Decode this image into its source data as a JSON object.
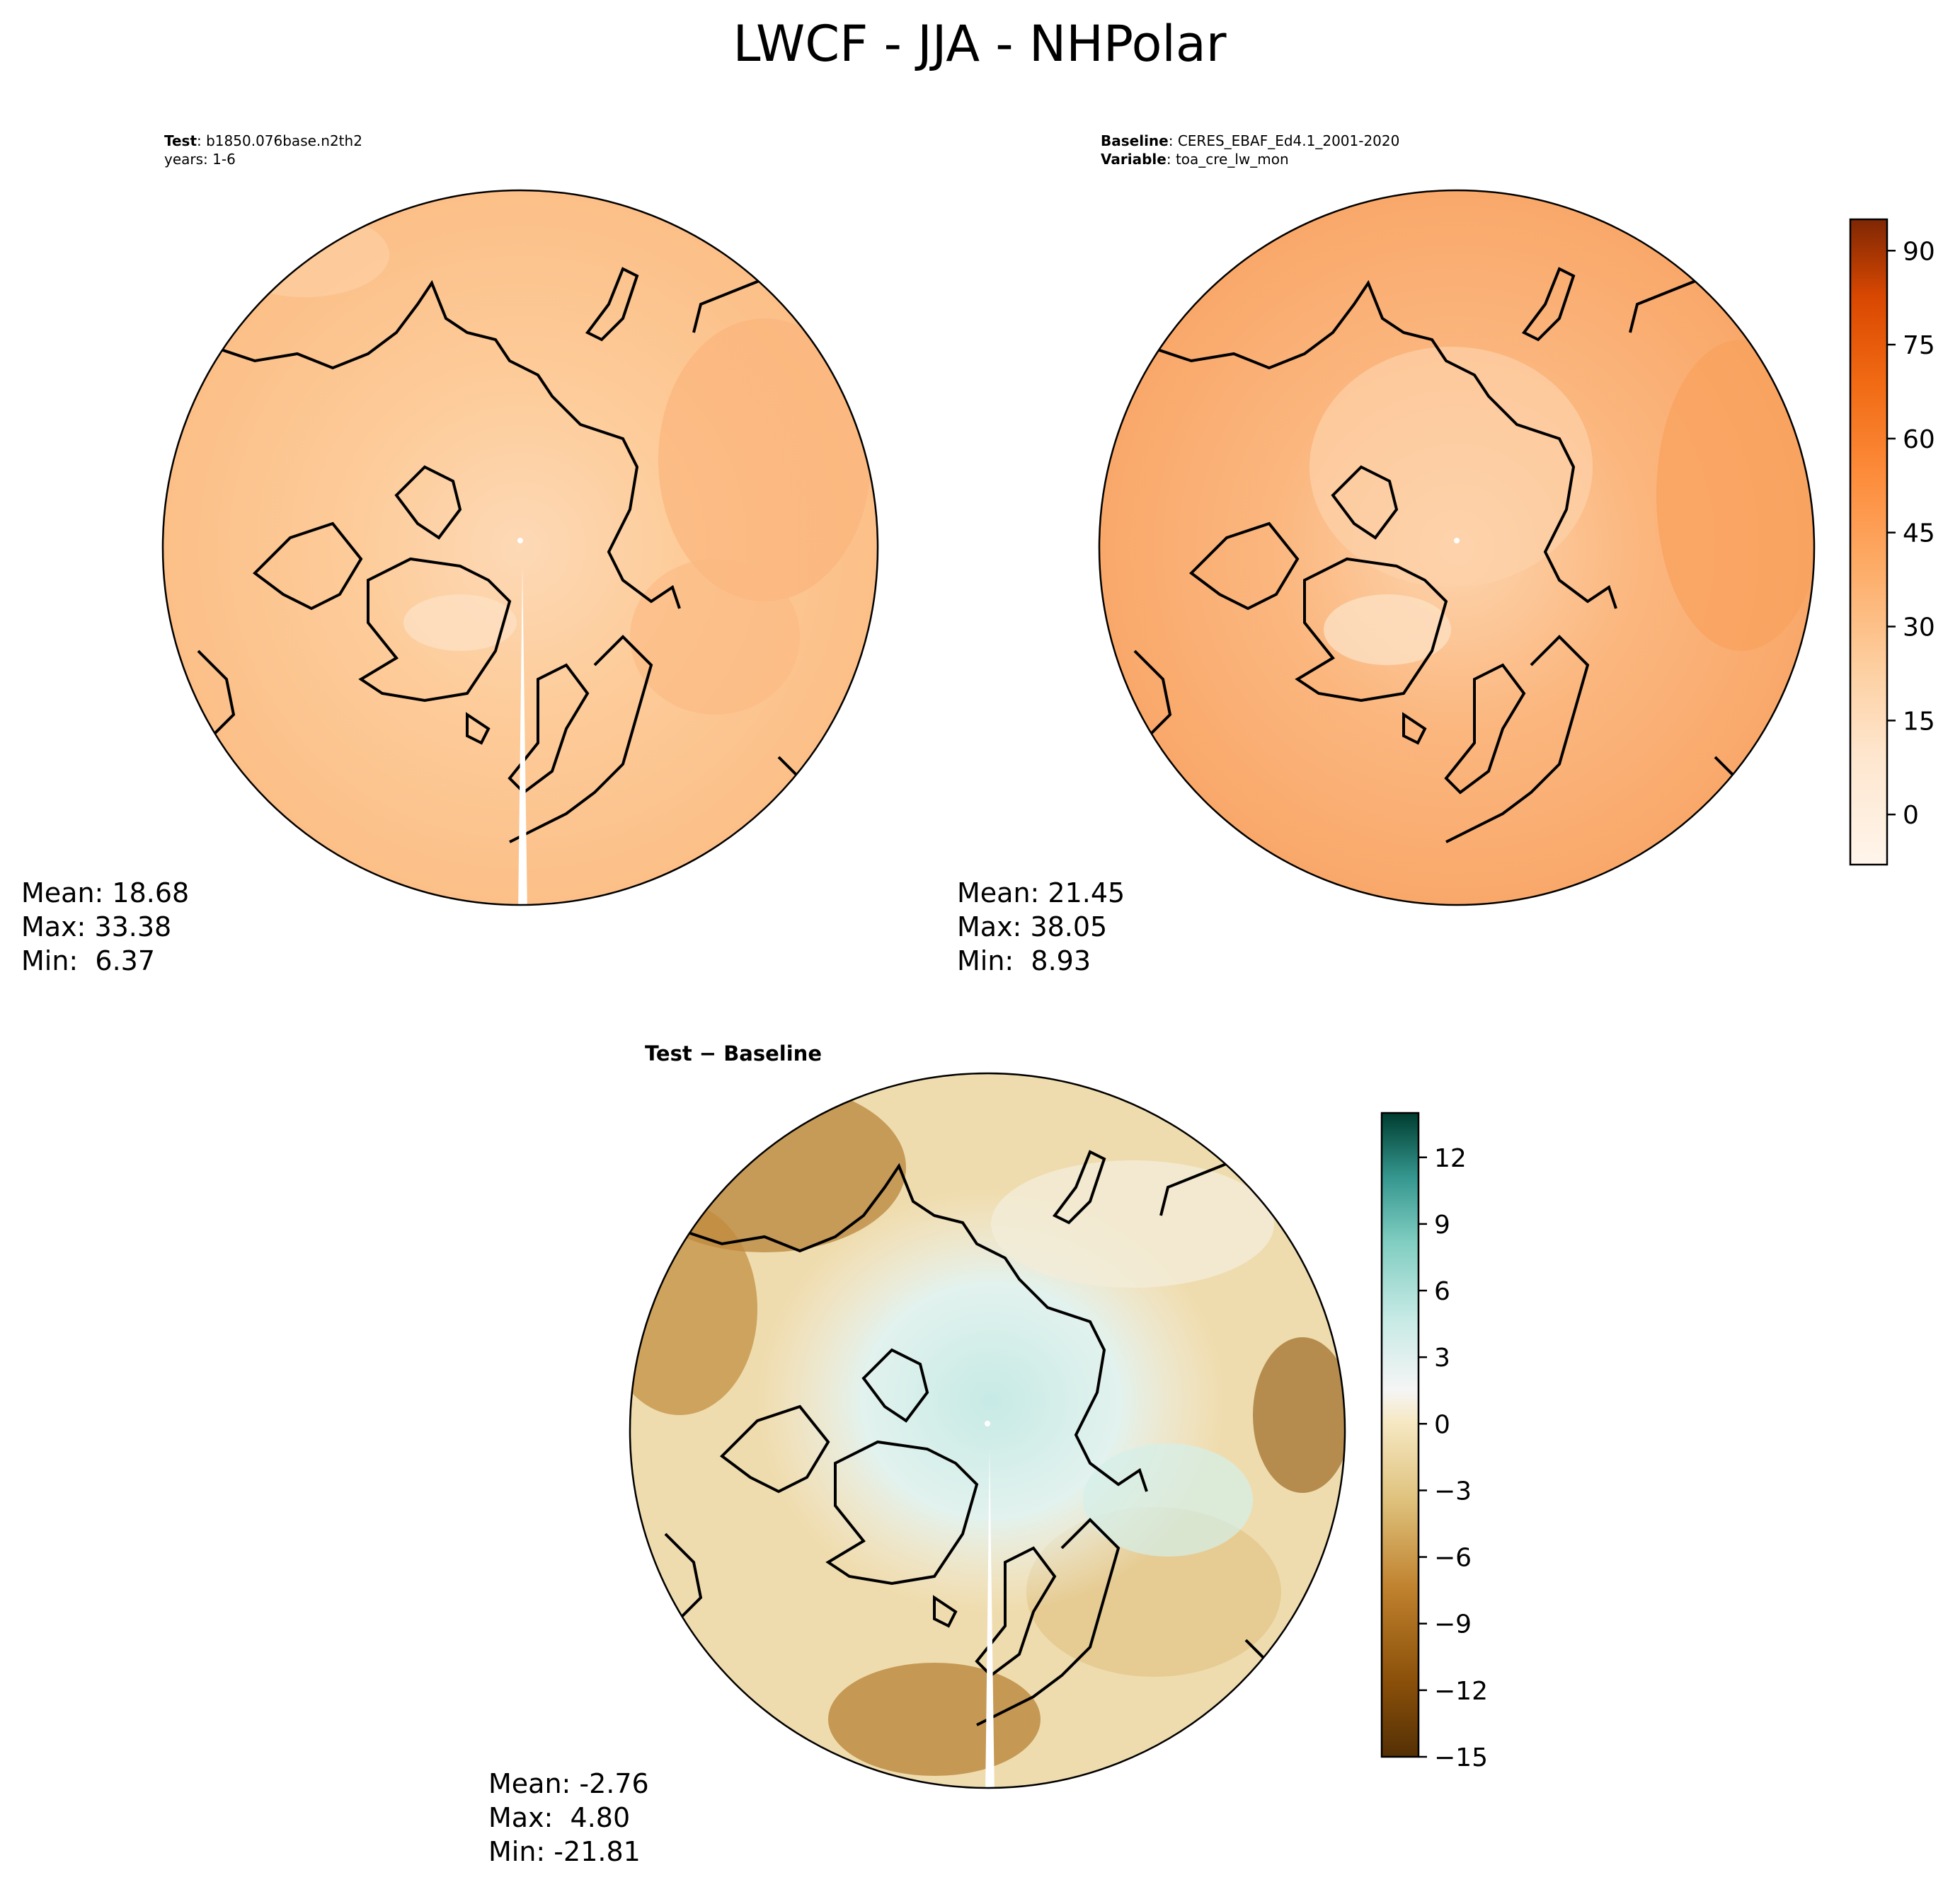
{
  "figure_title": "LWCF - JJA - NHPolar",
  "panels": [
    {
      "id": "test",
      "header": [
        {
          "bold": "Test",
          "text": ": b1850.076base.n2th2"
        },
        {
          "bold": "",
          "text": "years: 1-6"
        }
      ],
      "stats": {
        "mean": "Mean: 18.68",
        "max": "Max: 33.38",
        "min": "Min:  6.37"
      }
    },
    {
      "id": "baseline",
      "header": [
        {
          "bold": "Baseline",
          "text": ": CERES_EBAF_Ed4.1_2001-2020"
        },
        {
          "bold": "Variable",
          "text": ": toa_cre_lw_mon"
        }
      ],
      "stats": {
        "mean": "Mean: 21.45",
        "max": "Max: 38.05",
        "min": "Min:  8.93"
      }
    },
    {
      "id": "diff",
      "title": "Test − Baseline",
      "stats": {
        "mean": "Mean: -2.76",
        "max": "Max:  4.80",
        "min": "Min: -21.81"
      }
    }
  ],
  "chart_data": [
    {
      "type": "heatmap",
      "projection": "north-polar-stereographic",
      "title": "LWCF - JJA - NHPolar",
      "panel": "Test: b1850.076base.n2th2, years: 1-6",
      "colormap": "Oranges",
      "vmin": -8,
      "vmax": 95,
      "colorbar_ticks": [
        0,
        15,
        30,
        45,
        60,
        75,
        90
      ],
      "colorbar_tick_labels": [
        "0",
        "15",
        "30",
        "45",
        "60",
        "75",
        "90"
      ],
      "stats": {
        "mean": 18.68,
        "max": 33.38,
        "min": 6.37
      }
    },
    {
      "type": "heatmap",
      "projection": "north-polar-stereographic",
      "panel": "Baseline: CERES_EBAF_Ed4.1_2001-2020, Variable: toa_cre_lw_mon",
      "colormap": "Oranges",
      "vmin": -8,
      "vmax": 95,
      "colorbar_ticks": [
        0,
        15,
        30,
        45,
        60,
        75,
        90
      ],
      "colorbar_tick_labels": [
        "0",
        "15",
        "30",
        "45",
        "60",
        "75",
        "90"
      ],
      "stats": {
        "mean": 21.45,
        "max": 38.05,
        "min": 8.93
      }
    },
    {
      "type": "heatmap",
      "projection": "north-polar-stereographic",
      "title": "Test − Baseline",
      "colormap": "BrBG",
      "vmin": -15,
      "vmax": 14,
      "colorbar_ticks": [
        12,
        9,
        6,
        3,
        0,
        -3,
        -6,
        -9,
        -12,
        -15
      ],
      "colorbar_tick_labels": [
        "12",
        "9",
        "6",
        "3",
        "0",
        "−3",
        "−6",
        "−9",
        "−12",
        "−15"
      ],
      "stats": {
        "mean": -2.76,
        "max": 4.8,
        "min": -21.81
      }
    }
  ],
  "colors": {
    "oranges_light": "#fdd0a2",
    "oranges_mid": "#fdae6b",
    "oranges_dark": "#7f2704",
    "brbg_brown": "#543005",
    "brbg_tan": "#dfc27d",
    "brbg_teal": "#003c30",
    "coastline": "#000000"
  }
}
